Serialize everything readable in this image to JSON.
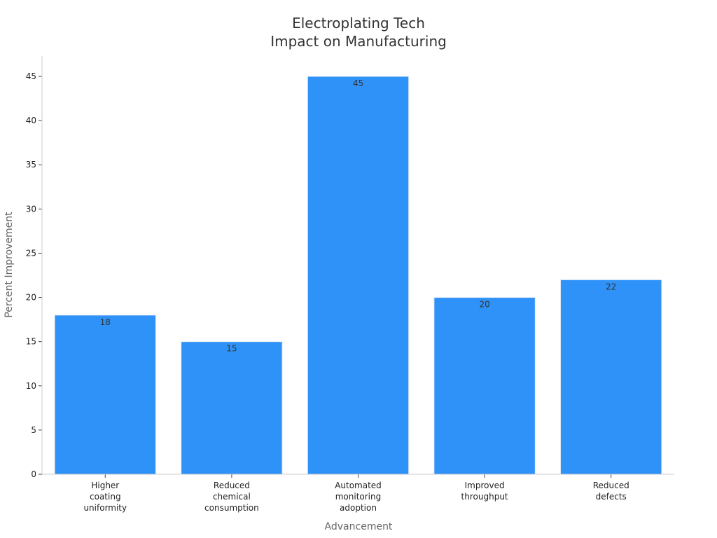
{
  "chart_data": {
    "type": "bar",
    "title_lines": [
      "Electroplating Tech",
      "Impact on Manufacturing"
    ],
    "xlabel": "Advancement",
    "ylabel": "Percent Improvement",
    "categories": [
      [
        "Higher",
        "coating",
        "uniformity"
      ],
      [
        "Reduced",
        "chemical",
        "consumption"
      ],
      [
        "Automated",
        "monitoring",
        "adoption"
      ],
      [
        "Improved",
        "throughput"
      ],
      [
        "Reduced",
        "defects"
      ]
    ],
    "values": [
      18,
      15,
      45,
      20,
      22
    ],
    "data_labels": [
      "18",
      "15",
      "45",
      "20",
      "22"
    ],
    "ylim": [
      0,
      47.3
    ],
    "yticks": [
      0,
      5,
      10,
      15,
      20,
      25,
      30,
      35,
      40,
      45
    ],
    "bar_color": "#2f92f8",
    "grid": false,
    "legend": "none"
  }
}
